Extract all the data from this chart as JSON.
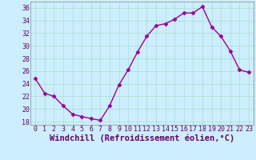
{
  "x": [
    0,
    1,
    2,
    3,
    4,
    5,
    6,
    7,
    8,
    9,
    10,
    11,
    12,
    13,
    14,
    15,
    16,
    17,
    18,
    19,
    20,
    21,
    22,
    23
  ],
  "y": [
    24.8,
    22.5,
    22.0,
    20.5,
    19.2,
    18.8,
    18.5,
    18.2,
    20.5,
    23.8,
    26.2,
    29.0,
    31.5,
    33.2,
    33.5,
    34.2,
    35.2,
    35.2,
    36.2,
    33.0,
    31.5,
    29.2,
    26.2,
    25.8
  ],
  "line_color": "#990099",
  "marker": "D",
  "markersize": 2.5,
  "linewidth": 1.0,
  "xlabel": "Windchill (Refroidissement éolien,°C)",
  "xlabel_fontsize": 7.5,
  "bg_color": "#cceeff",
  "grid_color": "#aaddcc",
  "xlim": [
    -0.5,
    23.5
  ],
  "ylim": [
    17.5,
    37.0
  ],
  "yticks": [
    18,
    20,
    22,
    24,
    26,
    28,
    30,
    32,
    34,
    36
  ],
  "xticks": [
    0,
    1,
    2,
    3,
    4,
    5,
    6,
    7,
    8,
    9,
    10,
    11,
    12,
    13,
    14,
    15,
    16,
    17,
    18,
    19,
    20,
    21,
    22,
    23
  ],
  "tick_fontsize": 6.0,
  "tick_color": "#660066",
  "spine_color": "#888888"
}
